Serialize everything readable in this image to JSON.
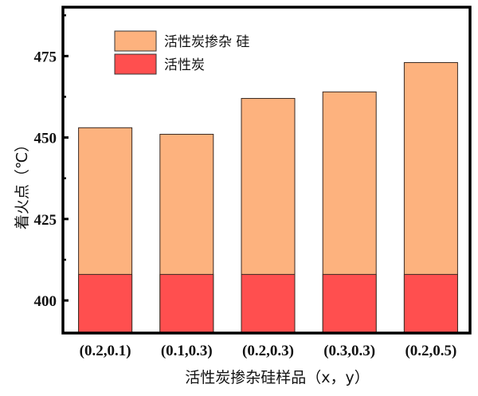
{
  "chart_data": {
    "type": "bar",
    "stacked_overlay": true,
    "categories": [
      "(0.2,0.1)",
      "(0.1,0.3)",
      "(0.2,0.3)",
      "(0.3,0.3)",
      "(0.2,0.5)"
    ],
    "series": [
      {
        "name": "活性炭掺杂 硅",
        "values": [
          453,
          451,
          462,
          464,
          473
        ],
        "color": "#FDB27E"
      },
      {
        "name": "活性炭",
        "values": [
          408,
          408,
          408,
          408,
          408
        ],
        "color": "#FF4F4F"
      }
    ],
    "xlabel": "活性炭掺杂硅样品（x，y）",
    "ylabel": "着火点（℃）",
    "ylim": [
      390,
      490
    ],
    "yticks": [
      400,
      425,
      450,
      475
    ],
    "grid": false,
    "legend": "top-left"
  }
}
